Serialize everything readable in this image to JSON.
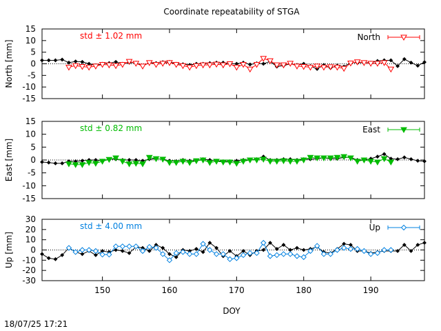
{
  "figure": {
    "title": "Coordinate repeatability of STGA",
    "xlabel": "DOY",
    "timestamp": "18/07/25 17:21",
    "x_ticks": [
      150,
      160,
      170,
      180,
      190
    ]
  },
  "chart_data": [
    {
      "type": "line",
      "panel": "north",
      "ylabel": "North [mm]",
      "xlim": [
        141,
        198
      ],
      "ylim": [
        -15,
        15
      ],
      "y_ticks": [
        15,
        10,
        5,
        0,
        -5,
        -10,
        -15
      ],
      "std_label": "std ± 1.02 mm",
      "legend": "North",
      "legend_position": "top-right",
      "color": "#ff0000",
      "marker": "triangle-down-open",
      "series": [
        {
          "name": "North",
          "x": [
            145,
            146,
            147,
            148,
            149,
            150,
            151,
            152,
            153,
            154,
            155,
            156,
            157,
            158,
            159,
            160,
            161,
            162,
            163,
            164,
            165,
            166,
            167,
            168,
            169,
            170,
            171,
            172,
            173,
            174,
            175,
            176,
            177,
            178,
            179,
            180,
            181,
            182,
            183,
            184,
            185,
            186,
            187,
            188,
            189,
            190,
            191,
            192,
            193
          ],
          "values": [
            -1.5,
            -0.8,
            -1.2,
            -1.5,
            -1.0,
            -0.3,
            -0.5,
            -0.8,
            -0.3,
            1.0,
            0.2,
            -1.0,
            0.5,
            -0.3,
            0.2,
            0.5,
            -0.3,
            -0.8,
            -1.5,
            -0.8,
            -0.5,
            -0.5,
            -0.2,
            -0.5,
            0.0,
            -1.5,
            -0.3,
            -2.3,
            -0.3,
            2.3,
            1.3,
            -0.5,
            -0.5,
            0.2,
            -1.0,
            -1.2,
            -1.5,
            -1.0,
            -1.5,
            -1.3,
            -1.5,
            -2.0,
            0.3,
            0.8,
            0.5,
            0.2,
            0.2,
            0.5,
            -2.3
          ]
        },
        {
          "name": "reference",
          "x": [
            141,
            142,
            143,
            144,
            145,
            146,
            147,
            148,
            149,
            150,
            151,
            152,
            153,
            154,
            155,
            156,
            157,
            158,
            159,
            160,
            161,
            162,
            163,
            164,
            165,
            166,
            167,
            168,
            169,
            170,
            171,
            172,
            173,
            174,
            175,
            176,
            177,
            178,
            179,
            180,
            181,
            182,
            183,
            184,
            185,
            186,
            187,
            188,
            189,
            190,
            191,
            192,
            193,
            194,
            195,
            196,
            197,
            198
          ],
          "values": [
            1.5,
            1.5,
            1.5,
            1.8,
            0.5,
            1.0,
            0.8,
            0.0,
            -0.7,
            0.0,
            0.3,
            0.8,
            0.0,
            0.5,
            0.5,
            -1.0,
            0.5,
            0.3,
            0.7,
            0.8,
            0.0,
            -0.2,
            -0.5,
            0.0,
            0.0,
            0.3,
            0.5,
            0.5,
            0.0,
            0.0,
            0.5,
            -0.3,
            0.2,
            0.0,
            1.0,
            -1.2,
            -0.8,
            0.0,
            -0.5,
            0.0,
            -1.0,
            -2.2,
            -0.5,
            -1.8,
            -0.8,
            -1.2,
            0.5,
            0.5,
            0.5,
            0.5,
            1.2,
            1.5,
            1.5,
            -1.0,
            2.0,
            0.5,
            -0.8,
            0.7
          ]
        }
      ]
    },
    {
      "type": "line",
      "panel": "east",
      "ylabel": "East [mm]",
      "xlim": [
        141,
        198
      ],
      "ylim": [
        -15,
        15
      ],
      "y_ticks": [
        15,
        10,
        5,
        0,
        -5,
        -10,
        -15
      ],
      "std_label": "std ± 0.82 mm",
      "legend": "East",
      "legend_position": "top-right",
      "color": "#00bb00",
      "marker": "triangle-down-filled",
      "series": [
        {
          "name": "East",
          "x": [
            145,
            146,
            147,
            148,
            149,
            150,
            151,
            152,
            153,
            154,
            155,
            156,
            157,
            158,
            159,
            160,
            161,
            162,
            163,
            164,
            165,
            166,
            167,
            168,
            169,
            170,
            171,
            172,
            173,
            174,
            175,
            176,
            177,
            178,
            179,
            180,
            181,
            182,
            183,
            184,
            185,
            186,
            187,
            188,
            189,
            190,
            191,
            192,
            193
          ],
          "values": [
            -1.5,
            -1.8,
            -1.8,
            -1.0,
            -1.3,
            -0.5,
            0.2,
            0.8,
            -0.5,
            -1.5,
            -1.3,
            -1.5,
            1.0,
            0.5,
            0.3,
            -1.0,
            -1.0,
            -0.5,
            -1.0,
            -0.3,
            0.0,
            -1.0,
            -0.5,
            -0.8,
            -0.8,
            -1.3,
            -0.5,
            0.0,
            0.0,
            0.3,
            -0.5,
            -0.5,
            -0.3,
            -0.5,
            -0.5,
            0.0,
            1.0,
            0.8,
            0.8,
            0.8,
            1.0,
            1.3,
            0.8,
            -0.5,
            0.0,
            -0.5,
            -0.8,
            0.5,
            -0.8
          ]
        },
        {
          "name": "reference",
          "x": [
            141,
            142,
            143,
            144,
            145,
            146,
            147,
            148,
            149,
            150,
            151,
            152,
            153,
            154,
            155,
            156,
            157,
            158,
            159,
            160,
            161,
            162,
            163,
            164,
            165,
            166,
            167,
            168,
            169,
            170,
            171,
            172,
            173,
            174,
            175,
            176,
            177,
            178,
            179,
            180,
            181,
            182,
            183,
            184,
            185,
            186,
            187,
            188,
            189,
            190,
            191,
            192,
            193,
            194,
            195,
            196,
            197,
            198
          ],
          "values": [
            -0.8,
            -1.0,
            -1.3,
            -1.3,
            -0.5,
            -0.5,
            -0.3,
            0.0,
            0.0,
            -0.3,
            0.3,
            0.3,
            0.0,
            0.0,
            0.0,
            -0.3,
            0.3,
            0.5,
            0.3,
            -0.3,
            -0.5,
            0.0,
            -0.3,
            -0.3,
            0.3,
            0.0,
            -0.3,
            -0.5,
            -0.5,
            -0.3,
            0.0,
            0.0,
            0.3,
            1.3,
            0.0,
            0.0,
            0.3,
            0.3,
            0.0,
            0.3,
            0.3,
            0.5,
            0.8,
            0.5,
            0.5,
            1.0,
            1.0,
            0.0,
            0.0,
            0.5,
            1.3,
            2.3,
            0.5,
            0.3,
            1.0,
            0.3,
            -0.3,
            -0.5
          ]
        }
      ]
    },
    {
      "type": "line",
      "panel": "up",
      "ylabel": "Up [mm]",
      "xlim": [
        141,
        198
      ],
      "ylim": [
        -30,
        30
      ],
      "y_ticks": [
        30,
        20,
        10,
        0,
        -10,
        -20,
        -30
      ],
      "std_label": "std ± 4.00 mm",
      "legend": "Up",
      "legend_position": "top-right",
      "color": "#0080e0",
      "marker": "diamond-open",
      "series": [
        {
          "name": "Up",
          "x": [
            145,
            146,
            147,
            148,
            149,
            150,
            151,
            152,
            153,
            154,
            155,
            156,
            157,
            158,
            159,
            160,
            161,
            162,
            163,
            164,
            165,
            166,
            167,
            168,
            169,
            170,
            171,
            172,
            173,
            174,
            175,
            176,
            177,
            178,
            179,
            180,
            181,
            182,
            183,
            184,
            185,
            186,
            187,
            188,
            189,
            190,
            191,
            192,
            193
          ],
          "values": [
            2.0,
            -2.0,
            0.0,
            0.0,
            -1.0,
            -4.5,
            -4.5,
            3.5,
            3.5,
            3.5,
            3.5,
            -1.0,
            3.0,
            2.0,
            -4.0,
            -10.0,
            -3.0,
            -2.0,
            -4.0,
            -4.0,
            6.0,
            0.0,
            -4.0,
            -4.0,
            -9.0,
            -8.0,
            -5.0,
            -3.0,
            -3.0,
            7.0,
            -6.0,
            -5.0,
            -4.0,
            -4.0,
            -6.0,
            -7.0,
            -1.0,
            4.0,
            -4.0,
            -4.0,
            0.0,
            2.0,
            1.0,
            1.0,
            -1.0,
            -4.0,
            -3.0,
            0.0,
            0.0
          ]
        },
        {
          "name": "reference",
          "x": [
            141,
            142,
            143,
            144,
            145,
            146,
            147,
            148,
            149,
            150,
            151,
            152,
            153,
            154,
            155,
            156,
            157,
            158,
            159,
            160,
            161,
            162,
            163,
            164,
            165,
            166,
            167,
            168,
            169,
            170,
            171,
            172,
            173,
            174,
            175,
            176,
            177,
            178,
            179,
            180,
            181,
            182,
            183,
            184,
            185,
            186,
            187,
            188,
            189,
            190,
            191,
            192,
            193,
            194,
            195,
            196,
            197,
            198
          ],
          "values": [
            -4.0,
            -8.0,
            -9.0,
            -5.0,
            2.0,
            -2.0,
            -4.0,
            -1.0,
            -5.0,
            -1.0,
            -2.0,
            0.0,
            -1.0,
            -3.0,
            3.0,
            2.0,
            -1.0,
            5.0,
            2.0,
            -4.0,
            -7.0,
            0.0,
            -1.0,
            1.0,
            -2.0,
            7.0,
            2.0,
            -6.0,
            -1.0,
            -6.0,
            -1.0,
            -5.0,
            -1.0,
            0.0,
            7.0,
            1.0,
            5.0,
            0.0,
            2.0,
            0.0,
            1.0,
            3.0,
            -2.0,
            -3.0,
            1.0,
            6.0,
            5.0,
            -1.0,
            -1.0,
            -3.0,
            -2.0,
            -1.0,
            -1.0,
            -1.0,
            5.0,
            -1.0,
            5.0,
            7.0
          ]
        }
      ]
    }
  ]
}
